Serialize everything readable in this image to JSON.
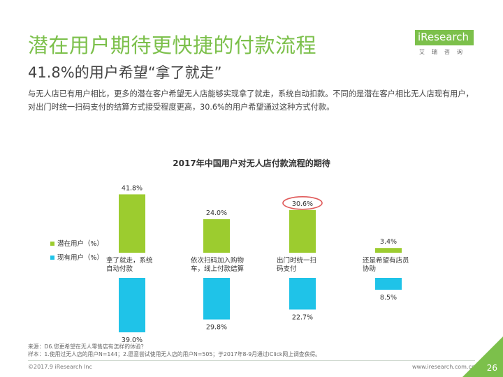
{
  "header": {
    "title": "潜在用户期待更快捷的付款流程",
    "subtitle": "41.8%的用户希望“拿了就走”",
    "description": "与无人店已有用户相比，更多的潜在客户希望无人店能够实现拿了就走，系统自动扣款。不同的是潜在客户相比无人店现有用户，对出门时统一扫码支付的结算方式接受程度更高，30.6%的用户希望通过这种方式付款。"
  },
  "logo": {
    "brand": "iResearch",
    "sub": "艾瑞咨询"
  },
  "chart_data": {
    "type": "bar",
    "title": "2017年中国用户对无人店付款流程的期待",
    "categories": [
      [
        "拿了就走，系统",
        "自动付款"
      ],
      [
        "依次扫码加入购物",
        "车，线上付款结算"
      ],
      [
        "出门时统一扫",
        "码支付"
      ],
      [
        "还是希望有店员",
        "协助"
      ]
    ],
    "series": [
      {
        "name": "潜在用户（%）",
        "values": [
          41.8,
          24.0,
          30.6,
          3.4
        ],
        "labels": [
          "41.8%",
          "24.0%",
          "30.6%",
          "3.4%"
        ],
        "color": "#9ccc2f"
      },
      {
        "name": "现有用户（%）",
        "values": [
          39.0,
          29.8,
          22.7,
          8.5
        ],
        "labels": [
          "39.0%",
          "29.8%",
          "22.7%",
          "8.5%"
        ],
        "color": "#1fc3e8"
      }
    ],
    "highlight": {
      "series": 0,
      "index": 2,
      "color": "#e05a5a"
    },
    "legend_position": "left"
  },
  "footer": {
    "source": "来源：D6.您更希望在无人零售店有怎样的体验？",
    "sample": "样本：1.使用过无人店的用户N=144；2.愿意尝试使用无人店的用户N=505；于2017年8-9月通过iClick网上调查获得。",
    "copyright": "©2017.9 iResearch Inc",
    "website": "www.iresearch.com.cn",
    "page": "26"
  }
}
